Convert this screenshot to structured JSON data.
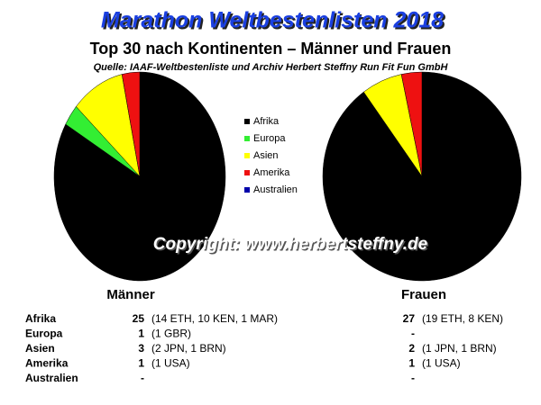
{
  "title": "Marathon Weltbestenlisten 2018",
  "subtitle": "Top 30 nach Kontinenten – Männer und Frauen",
  "source": "Quelle: IAAF-Weltbestenliste und Archiv Herbert Steffny Run Fit Fun GmbH",
  "copyright": "Copyright: www.herbertsteffny.de",
  "chart_data": {
    "type": "pie",
    "categories": [
      "Afrika",
      "Europa",
      "Asien",
      "Amerika",
      "Australien"
    ],
    "colors": [
      "#000000",
      "#33ee33",
      "#ffff00",
      "#ee1111",
      "#0000aa"
    ],
    "series": [
      {
        "name": "Männer",
        "values": [
          25,
          1,
          3,
          1,
          null
        ],
        "value_labels": [
          "25",
          "1",
          "3",
          "1",
          "-"
        ],
        "details": [
          "(14 ETH, 10 KEN, 1 MAR)",
          "(1 GBR)",
          "(2 JPN, 1 BRN)",
          "(1 USA)",
          null
        ]
      },
      {
        "name": "Frauen",
        "values": [
          27,
          null,
          2,
          1,
          null
        ],
        "value_labels": [
          "27",
          "-",
          "2",
          "1",
          "-"
        ],
        "details": [
          "(19 ETH, 8 KEN)",
          null,
          "(1 JPN, 1 BRN)",
          "(1 USA)",
          null
        ]
      }
    ]
  }
}
